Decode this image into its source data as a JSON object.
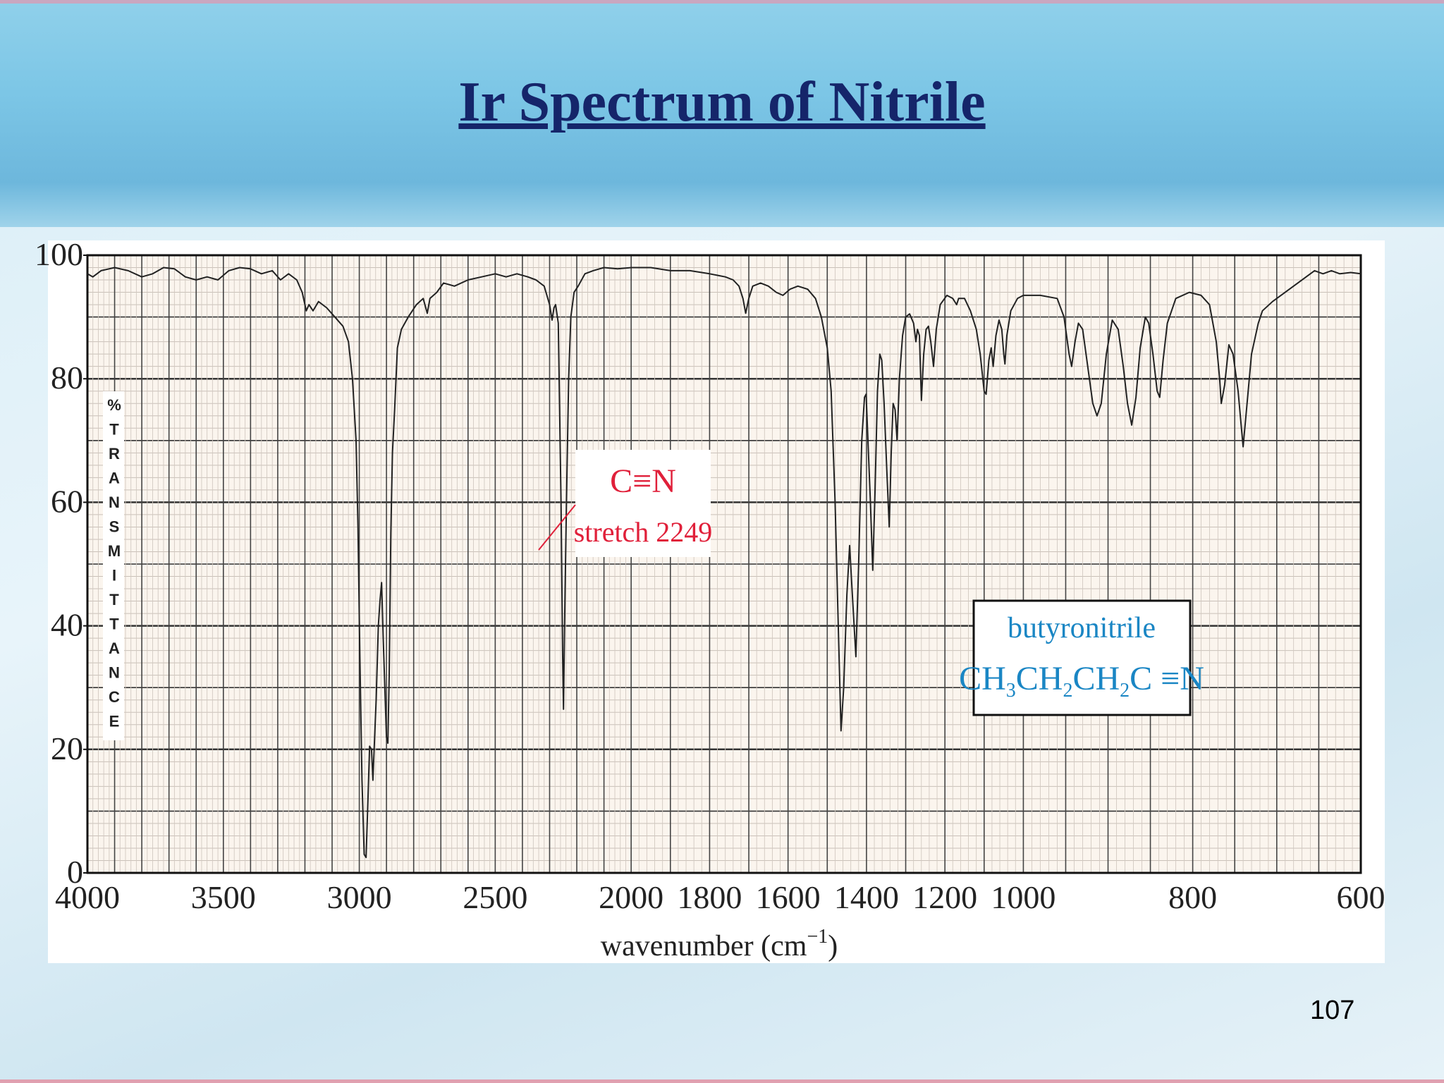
{
  "slide": {
    "title": "Ir Spectrum of Nitrile",
    "page_number": "107"
  },
  "chart_data": {
    "type": "line",
    "title": "",
    "xlabel": "wavenumber (cm",
    "xlabel_superscript": "−1",
    "xlabel_close": ")",
    "ylabel": "%TRANSMITTANCE",
    "xlim": [
      4000,
      600
    ],
    "ylim": [
      0,
      100
    ],
    "x_ticks": [
      4000,
      3500,
      3000,
      2500,
      2000,
      1800,
      1600,
      1400,
      1200,
      1000,
      800,
      600
    ],
    "y_ticks": [
      0,
      20,
      40,
      60,
      80,
      100
    ],
    "grid": true,
    "line_color": "#222222",
    "annotations": [
      {
        "label": "C≡N",
        "sublabel": "stretch 2249",
        "x": 2249,
        "color": "#e0203a"
      }
    ],
    "compound_box": {
      "name": "butyronitrile",
      "formula_parts": [
        "CH",
        "3",
        "CH",
        "2",
        "CH",
        "2",
        "C ≡N"
      ],
      "color": "#1a86c4"
    },
    "series": [
      {
        "points": [
          [
            4000,
            97
          ],
          [
            3980,
            96.5
          ],
          [
            3950,
            97.5
          ],
          [
            3900,
            98
          ],
          [
            3850,
            97.5
          ],
          [
            3800,
            96.5
          ],
          [
            3760,
            97
          ],
          [
            3720,
            98
          ],
          [
            3680,
            97.8
          ],
          [
            3640,
            96.5
          ],
          [
            3600,
            96
          ],
          [
            3560,
            96.5
          ],
          [
            3520,
            96
          ],
          [
            3480,
            97.5
          ],
          [
            3440,
            98
          ],
          [
            3400,
            97.8
          ],
          [
            3360,
            97
          ],
          [
            3320,
            97.5
          ],
          [
            3290,
            96
          ],
          [
            3260,
            97
          ],
          [
            3230,
            96
          ],
          [
            3210,
            94
          ],
          [
            3195,
            91
          ],
          [
            3185,
            92
          ],
          [
            3170,
            91
          ],
          [
            3150,
            92.5
          ],
          [
            3120,
            91.5
          ],
          [
            3090,
            90
          ],
          [
            3060,
            88.5
          ],
          [
            3040,
            86
          ],
          [
            3025,
            80
          ],
          [
            3012,
            70
          ],
          [
            3005,
            56
          ],
          [
            2998,
            35
          ],
          [
            2990,
            15
          ],
          [
            2982,
            3
          ],
          [
            2975,
            2.5
          ],
          [
            2968,
            12
          ],
          [
            2962,
            20.5
          ],
          [
            2955,
            20
          ],
          [
            2950,
            15
          ],
          [
            2945,
            20.5
          ],
          [
            2938,
            28
          ],
          [
            2930,
            40
          ],
          [
            2924,
            44
          ],
          [
            2918,
            47
          ],
          [
            2912,
            38
          ],
          [
            2906,
            30
          ],
          [
            2900,
            22
          ],
          [
            2895,
            21
          ],
          [
            2890,
            32
          ],
          [
            2884,
            55
          ],
          [
            2878,
            68
          ],
          [
            2870,
            75
          ],
          [
            2860,
            85
          ],
          [
            2845,
            88
          ],
          [
            2820,
            90
          ],
          [
            2790,
            92
          ],
          [
            2765,
            93
          ],
          [
            2750,
            90.6
          ],
          [
            2740,
            93
          ],
          [
            2715,
            94
          ],
          [
            2690,
            95.5
          ],
          [
            2650,
            95
          ],
          [
            2600,
            96
          ],
          [
            2550,
            96.5
          ],
          [
            2500,
            97
          ],
          [
            2460,
            96.5
          ],
          [
            2420,
            97
          ],
          [
            2380,
            96.5
          ],
          [
            2350,
            96
          ],
          [
            2320,
            95
          ],
          [
            2300,
            92
          ],
          [
            2291,
            89.5
          ],
          [
            2284,
            91.5
          ],
          [
            2278,
            92
          ],
          [
            2268,
            89
          ],
          [
            2258,
            60
          ],
          [
            2252,
            35
          ],
          [
            2249,
            26.5
          ],
          [
            2245,
            40
          ],
          [
            2238,
            60
          ],
          [
            2230,
            80
          ],
          [
            2222,
            90
          ],
          [
            2210,
            94
          ],
          [
            2195,
            95
          ],
          [
            2170,
            97
          ],
          [
            2140,
            97.5
          ],
          [
            2100,
            98
          ],
          [
            2050,
            97.8
          ],
          [
            2000,
            98
          ],
          [
            1950,
            98
          ],
          [
            1900,
            97.5
          ],
          [
            1850,
            97.5
          ],
          [
            1800,
            97
          ],
          [
            1760,
            96.5
          ],
          [
            1740,
            96
          ],
          [
            1725,
            95
          ],
          [
            1715,
            93
          ],
          [
            1708,
            90.6
          ],
          [
            1700,
            93
          ],
          [
            1690,
            95
          ],
          [
            1670,
            95.5
          ],
          [
            1650,
            95
          ],
          [
            1630,
            94
          ],
          [
            1613,
            93.5
          ],
          [
            1595,
            94.5
          ],
          [
            1575,
            95
          ],
          [
            1550,
            94.5
          ],
          [
            1530,
            93
          ],
          [
            1515,
            90
          ],
          [
            1500,
            85
          ],
          [
            1490,
            78
          ],
          [
            1480,
            60
          ],
          [
            1472,
            40
          ],
          [
            1465,
            23
          ],
          [
            1458,
            30
          ],
          [
            1450,
            45
          ],
          [
            1443,
            53
          ],
          [
            1436,
            45
          ],
          [
            1427,
            35
          ],
          [
            1420,
            50
          ],
          [
            1412,
            70
          ],
          [
            1405,
            77
          ],
          [
            1401,
            77.5
          ],
          [
            1395,
            68
          ],
          [
            1390,
            60
          ],
          [
            1384,
            49
          ],
          [
            1378,
            62
          ],
          [
            1372,
            78
          ],
          [
            1366,
            84
          ],
          [
            1361,
            83
          ],
          [
            1355,
            76
          ],
          [
            1348,
            65
          ],
          [
            1342,
            56
          ],
          [
            1337,
            68
          ],
          [
            1332,
            76
          ],
          [
            1327,
            75
          ],
          [
            1322,
            70
          ],
          [
            1316,
            80
          ],
          [
            1308,
            87
          ],
          [
            1300,
            90
          ],
          [
            1290,
            90.5
          ],
          [
            1280,
            89
          ],
          [
            1274,
            86
          ],
          [
            1270,
            88
          ],
          [
            1265,
            87
          ],
          [
            1260,
            76.5
          ],
          [
            1254,
            84
          ],
          [
            1248,
            88
          ],
          [
            1242,
            88.5
          ],
          [
            1236,
            86
          ],
          [
            1229,
            82
          ],
          [
            1222,
            88
          ],
          [
            1212,
            92
          ],
          [
            1195,
            93.5
          ],
          [
            1180,
            93
          ],
          [
            1170,
            92
          ],
          [
            1165,
            93
          ],
          [
            1150,
            93
          ],
          [
            1135,
            91
          ],
          [
            1120,
            88
          ],
          [
            1110,
            84
          ],
          [
            1100,
            78
          ],
          [
            1095,
            77.5
          ],
          [
            1088,
            83
          ],
          [
            1082,
            85
          ],
          [
            1077,
            82
          ],
          [
            1070,
            87
          ],
          [
            1062,
            89.5
          ],
          [
            1055,
            88
          ],
          [
            1050,
            84
          ],
          [
            1047,
            82.4
          ],
          [
            1042,
            87
          ],
          [
            1032,
            91
          ],
          [
            1015,
            93
          ],
          [
            1000,
            93.5
          ],
          [
            980,
            93.5
          ],
          [
            960,
            93
          ],
          [
            952,
            90
          ],
          [
            946,
            84
          ],
          [
            943,
            82
          ],
          [
            939,
            86
          ],
          [
            935,
            89
          ],
          [
            930,
            88
          ],
          [
            924,
            82
          ],
          [
            918,
            76
          ],
          [
            913,
            74
          ],
          [
            908,
            76
          ],
          [
            902,
            84
          ],
          [
            895,
            89.5
          ],
          [
            888,
            88
          ],
          [
            882,
            82
          ],
          [
            877,
            76
          ],
          [
            872,
            72.5
          ],
          [
            867,
            77
          ],
          [
            862,
            85
          ],
          [
            856,
            90
          ],
          [
            852,
            89
          ],
          [
            847,
            84
          ],
          [
            842,
            78
          ],
          [
            839,
            77
          ],
          [
            835,
            83
          ],
          [
            830,
            89
          ],
          [
            820,
            93
          ],
          [
            804,
            94
          ],
          [
            790,
            93.5
          ],
          [
            780,
            92
          ],
          [
            772,
            86
          ],
          [
            768,
            80
          ],
          [
            766,
            76
          ],
          [
            762,
            79
          ],
          [
            757,
            85.5
          ],
          [
            752,
            84
          ],
          [
            746,
            78
          ],
          [
            742,
            72
          ],
          [
            740,
            69
          ],
          [
            736,
            75
          ],
          [
            730,
            84
          ],
          [
            722,
            89
          ],
          [
            717,
            91
          ],
          [
            705,
            92.5
          ],
          [
            690,
            94
          ],
          [
            675,
            95.5
          ],
          [
            665,
            96.5
          ],
          [
            655,
            97.5
          ],
          [
            645,
            97
          ],
          [
            635,
            97.5
          ],
          [
            625,
            97
          ],
          [
            612,
            97.2
          ],
          [
            600,
            97
          ]
        ]
      }
    ]
  }
}
